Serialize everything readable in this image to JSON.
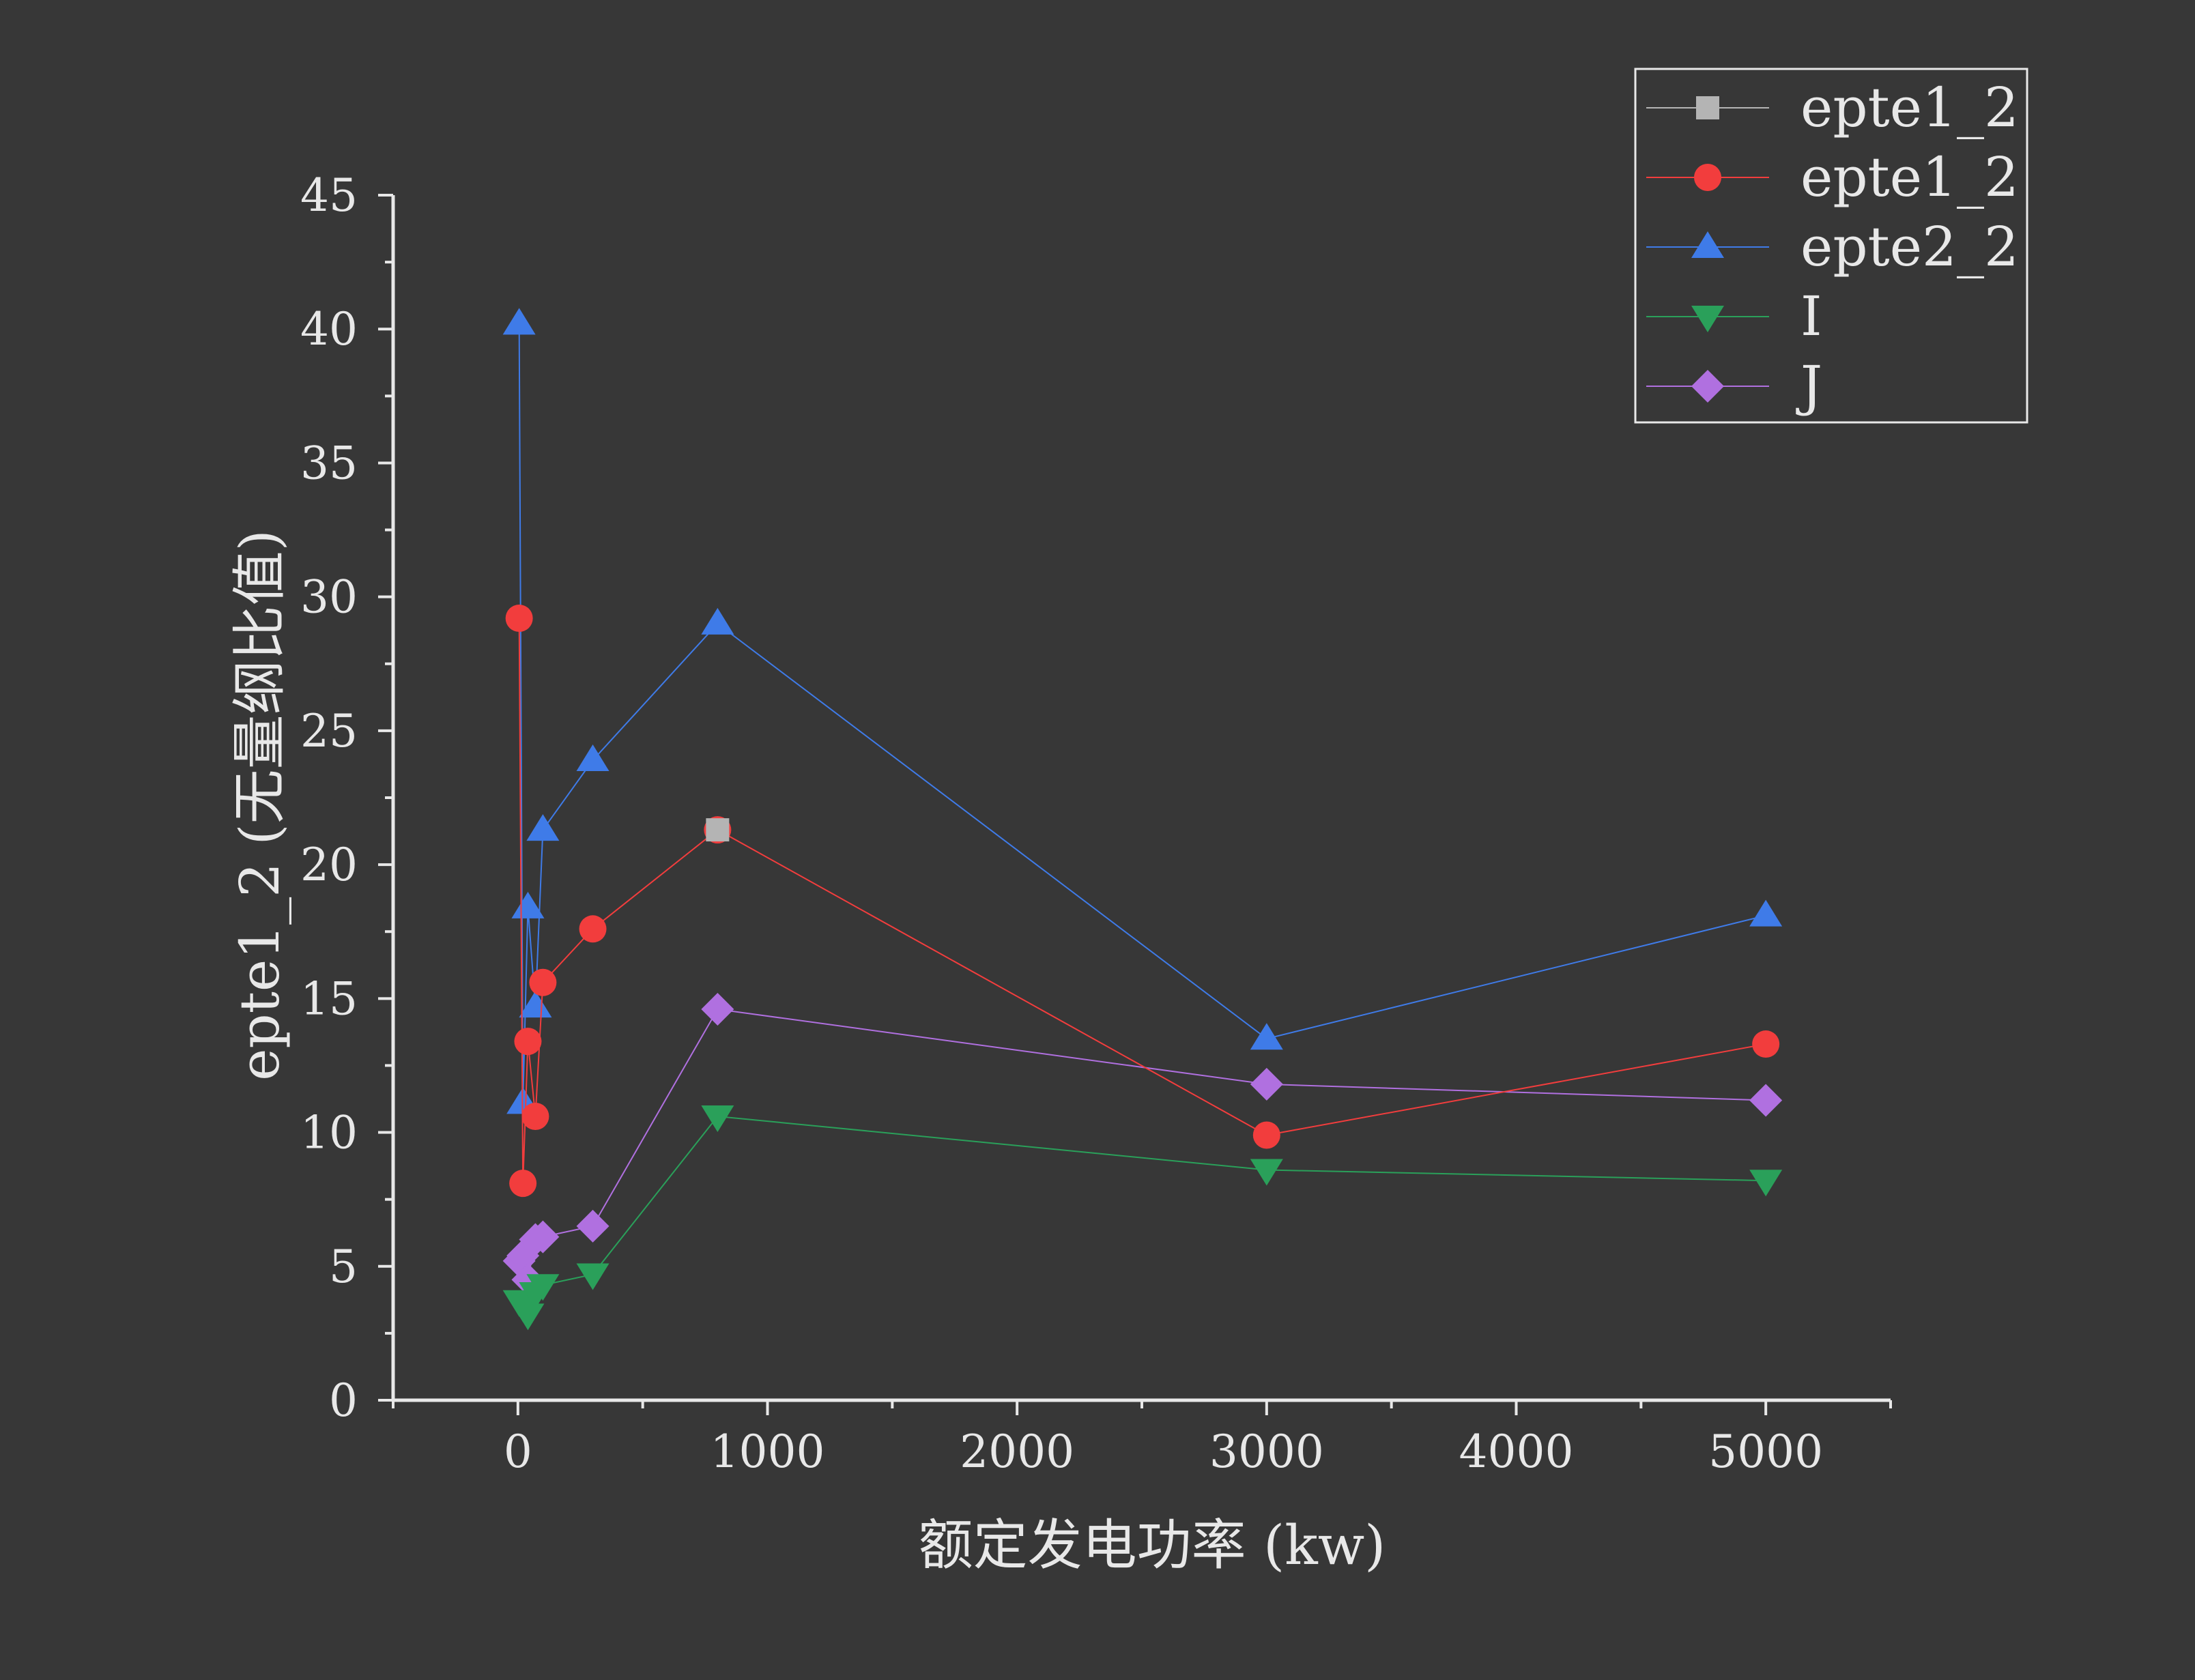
{
  "chart_data": {
    "type": "line",
    "xlabel": "额定发电功率 (kw)",
    "ylabel": "epte1_2 (无量纲比值)",
    "xlim": [
      -500,
      5500
    ],
    "ylim": [
      0,
      45
    ],
    "xticks": [
      0,
      1000,
      2000,
      3000,
      4000,
      5000
    ],
    "yticks": [
      0,
      5,
      10,
      15,
      20,
      25,
      30,
      35,
      40,
      45
    ],
    "grid": false,
    "legend_position": "top-right",
    "series": [
      {
        "name": "epte1_2",
        "color": "#b4b4b4",
        "marker": "square",
        "points": [
          [
            800,
            21.3
          ]
        ]
      },
      {
        "name": "epte1_2",
        "color": "#f23d3d",
        "marker": "circle",
        "points": [
          [
            5,
            29.2
          ],
          [
            20,
            8.1
          ],
          [
            40,
            13.4
          ],
          [
            70,
            10.6
          ],
          [
            100,
            15.6
          ],
          [
            300,
            17.6
          ],
          [
            800,
            21.3
          ],
          [
            3000,
            9.9
          ],
          [
            5000,
            13.3
          ]
        ]
      },
      {
        "name": "epte2_2",
        "color": "#3f7be8",
        "marker": "triangle-up",
        "points": [
          [
            5,
            40.2
          ],
          [
            20,
            11.1
          ],
          [
            40,
            18.4
          ],
          [
            70,
            14.7
          ],
          [
            100,
            21.3
          ],
          [
            300,
            23.9
          ],
          [
            800,
            29.0
          ],
          [
            3000,
            13.5
          ],
          [
            5000,
            18.1
          ]
        ]
      },
      {
        "name": "I",
        "color": "#2aa05a",
        "marker": "triangle-down",
        "points": [
          [
            5,
            3.7
          ],
          [
            20,
            3.5
          ],
          [
            40,
            3.2
          ],
          [
            70,
            4.0
          ],
          [
            100,
            4.3
          ],
          [
            300,
            4.7
          ],
          [
            800,
            10.6
          ],
          [
            3000,
            8.6
          ],
          [
            5000,
            8.2
          ]
        ]
      },
      {
        "name": "J",
        "color": "#b070e0",
        "marker": "diamond",
        "points": [
          [
            5,
            5.2
          ],
          [
            20,
            5.4
          ],
          [
            40,
            4.5
          ],
          [
            70,
            6.0
          ],
          [
            100,
            6.1
          ],
          [
            300,
            6.5
          ],
          [
            800,
            14.6
          ],
          [
            3000,
            11.8
          ],
          [
            5000,
            11.2
          ]
        ]
      }
    ]
  }
}
